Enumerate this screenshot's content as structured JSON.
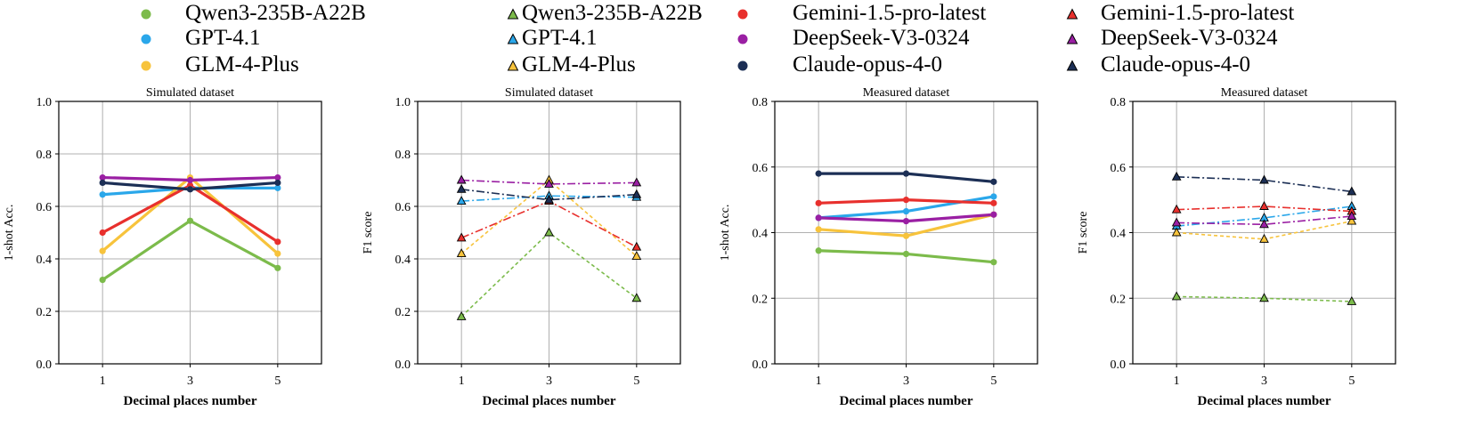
{
  "colors": {
    "Qwen3-235B-A22B": "#7cbb4b",
    "GPT-4.1": "#2aa7ea",
    "GLM-4-Plus": "#f7c33c",
    "Gemini-1.5-pro-latest": "#e8302d",
    "DeepSeek-V3-0324": "#9a1fa3",
    "Claude-opus-4-0": "#1c2f55"
  },
  "legend": {
    "col1": [
      "Qwen3-235B-A22B",
      "GPT-4.1",
      "GLM-4-Plus"
    ],
    "col2": [
      "Qwen3-235B-A22B",
      "GPT-4.1",
      "GLM-4-Plus"
    ],
    "col3": [
      "Gemini-1.5-pro-latest",
      "DeepSeek-V3-0324",
      "Claude-opus-4-0"
    ],
    "col4": [
      "Gemini-1.5-pro-latest",
      "DeepSeek-V3-0324",
      "Claude-opus-4-0"
    ]
  },
  "chart_data": [
    {
      "type": "line",
      "title": "Simulated dataset",
      "xlabel": "Decimal places number",
      "ylabel": "1-shot Acc.",
      "x": [
        1,
        3,
        5
      ],
      "ylim": [
        0.0,
        1.0
      ],
      "yticks": [
        "0.0",
        "0.2",
        "0.4",
        "0.6",
        "0.8",
        "1.0"
      ],
      "grid": true,
      "marker": "circle",
      "style": "solid",
      "series": [
        {
          "name": "Qwen3-235B-A22B",
          "values": [
            0.32,
            0.545,
            0.365
          ]
        },
        {
          "name": "GPT-4.1",
          "values": [
            0.645,
            0.67,
            0.67
          ]
        },
        {
          "name": "GLM-4-Plus",
          "values": [
            0.43,
            0.71,
            0.42
          ]
        },
        {
          "name": "Gemini-1.5-pro-latest",
          "values": [
            0.5,
            0.68,
            0.465
          ]
        },
        {
          "name": "DeepSeek-V3-0324",
          "values": [
            0.71,
            0.7,
            0.71
          ]
        },
        {
          "name": "Claude-opus-4-0",
          "values": [
            0.69,
            0.665,
            0.69
          ]
        }
      ]
    },
    {
      "type": "line",
      "title": "Simulated dataset",
      "xlabel": "Decimal places number",
      "ylabel": "F1 score",
      "x": [
        1,
        3,
        5
      ],
      "ylim": [
        0.0,
        1.0
      ],
      "yticks": [
        "0.0",
        "0.2",
        "0.4",
        "0.6",
        "0.8",
        "1.0"
      ],
      "grid": true,
      "marker": "triangle",
      "style": "dashed",
      "series": [
        {
          "name": "Qwen3-235B-A22B",
          "values": [
            0.18,
            0.5,
            0.25
          ]
        },
        {
          "name": "GPT-4.1",
          "values": [
            0.62,
            0.64,
            0.635
          ]
        },
        {
          "name": "GLM-4-Plus",
          "values": [
            0.42,
            0.7,
            0.41
          ]
        },
        {
          "name": "Gemini-1.5-pro-latest",
          "values": [
            0.48,
            0.62,
            0.445
          ]
        },
        {
          "name": "DeepSeek-V3-0324",
          "values": [
            0.7,
            0.685,
            0.69
          ]
        },
        {
          "name": "Claude-opus-4-0",
          "values": [
            0.665,
            0.625,
            0.645
          ]
        }
      ]
    },
    {
      "type": "line",
      "title": "Measured dataset",
      "xlabel": "Decimal places number",
      "ylabel": "1-shot Acc.",
      "x": [
        1,
        3,
        5
      ],
      "ylim": [
        0.0,
        0.8
      ],
      "yticks": [
        "0.0",
        "0.2",
        "0.4",
        "0.6",
        "0.8"
      ],
      "grid": true,
      "marker": "circle",
      "style": "solid",
      "series": [
        {
          "name": "Qwen3-235B-A22B",
          "values": [
            0.345,
            0.335,
            0.31
          ]
        },
        {
          "name": "GPT-4.1",
          "values": [
            0.445,
            0.465,
            0.51
          ]
        },
        {
          "name": "GLM-4-Plus",
          "values": [
            0.41,
            0.39,
            0.455
          ]
        },
        {
          "name": "Gemini-1.5-pro-latest",
          "values": [
            0.49,
            0.5,
            0.49
          ]
        },
        {
          "name": "DeepSeek-V3-0324",
          "values": [
            0.445,
            0.435,
            0.455
          ]
        },
        {
          "name": "Claude-opus-4-0",
          "values": [
            0.58,
            0.58,
            0.555
          ]
        }
      ]
    },
    {
      "type": "line",
      "title": "Measured dataset",
      "xlabel": "Decimal places number",
      "ylabel": "F1 score",
      "x": [
        1,
        3,
        5
      ],
      "ylim": [
        0.0,
        0.8
      ],
      "yticks": [
        "0.0",
        "0.2",
        "0.4",
        "0.6",
        "0.8"
      ],
      "grid": true,
      "marker": "triangle",
      "style": "dashed",
      "series": [
        {
          "name": "Qwen3-235B-A22B",
          "values": [
            0.205,
            0.2,
            0.19
          ]
        },
        {
          "name": "GPT-4.1",
          "values": [
            0.42,
            0.445,
            0.48
          ]
        },
        {
          "name": "GLM-4-Plus",
          "values": [
            0.4,
            0.38,
            0.435
          ]
        },
        {
          "name": "Gemini-1.5-pro-latest",
          "values": [
            0.47,
            0.48,
            0.465
          ]
        },
        {
          "name": "DeepSeek-V3-0324",
          "values": [
            0.43,
            0.425,
            0.45
          ]
        },
        {
          "name": "Claude-opus-4-0",
          "values": [
            0.57,
            0.56,
            0.525
          ]
        }
      ]
    }
  ]
}
